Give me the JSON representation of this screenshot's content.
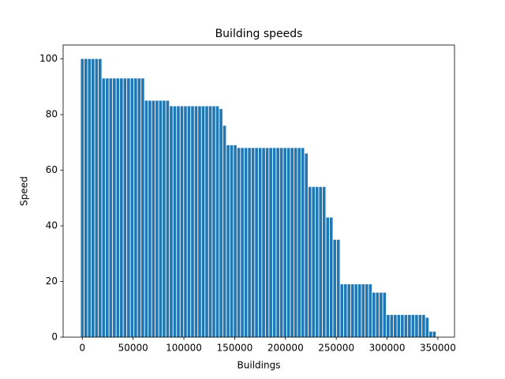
{
  "chart_data": {
    "type": "bar",
    "title": "Building speeds",
    "x_label": "Buildings",
    "y_label": "Speed",
    "x": [
      0,
      3500,
      7000,
      10500,
      14000,
      17500,
      21000,
      24500,
      28000,
      31500,
      35000,
      38500,
      42000,
      45500,
      49000,
      52500,
      56000,
      59500,
      63000,
      66500,
      70000,
      73500,
      77000,
      80500,
      84000,
      87500,
      91000,
      94500,
      98000,
      101500,
      105000,
      108500,
      112000,
      115500,
      119000,
      122500,
      126000,
      129500,
      133000,
      136500,
      140000,
      143500,
      147000,
      150500,
      154000,
      157500,
      161000,
      164500,
      168000,
      171500,
      175000,
      178500,
      182000,
      185500,
      189000,
      192500,
      196000,
      199500,
      203000,
      206500,
      210000,
      213500,
      217000,
      220500,
      224000,
      227500,
      231000,
      234500,
      238000,
      241500,
      245000,
      248500,
      252000,
      255500,
      259000,
      262500,
      266000,
      269500,
      273000,
      276500,
      280000,
      283500,
      287000,
      290500,
      294000,
      297500,
      301000,
      304500,
      308000,
      311500,
      315000,
      318500,
      322000,
      325500,
      329000,
      332500,
      336000,
      339500,
      343000,
      346500
    ],
    "values": [
      100,
      100,
      100,
      100,
      100,
      100,
      93,
      93,
      93,
      93,
      93,
      93,
      93,
      93,
      93,
      93,
      93,
      93,
      85,
      85,
      85,
      85,
      85,
      85,
      85,
      83,
      83,
      83,
      83,
      83,
      83,
      83,
      83,
      83,
      83,
      83,
      83,
      83,
      83,
      82,
      76,
      69,
      69,
      69,
      68,
      68,
      68,
      68,
      68,
      68,
      68,
      68,
      68,
      68,
      68,
      68,
      68,
      68,
      68,
      68,
      68,
      68,
      68,
      66,
      54,
      54,
      54,
      54,
      54,
      43,
      43,
      35,
      35,
      19,
      19,
      19,
      19,
      19,
      19,
      19,
      19,
      19,
      16,
      16,
      16,
      16,
      8,
      8,
      8,
      8,
      8,
      8,
      8,
      8,
      8,
      8,
      8,
      7,
      2,
      2
    ],
    "color": "#1f77b4",
    "xlim": [
      -18865,
      366365
    ],
    "xticks": [
      0,
      50000,
      100000,
      150000,
      200000,
      250000,
      300000,
      350000
    ],
    "ylim": [
      0,
      105
    ],
    "yticks": [
      0,
      20,
      40,
      60,
      80,
      100
    ]
  }
}
